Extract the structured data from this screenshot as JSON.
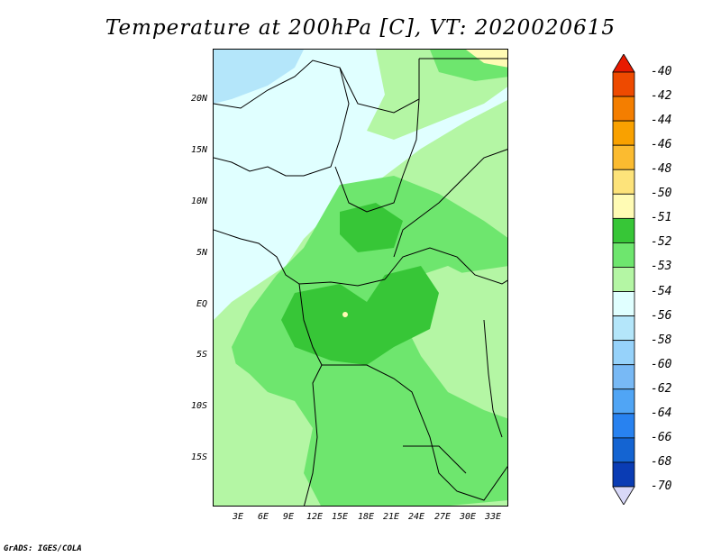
{
  "title": "Temperature at 200hPa [C], VT: 2020020615",
  "credit": "GrADS: IGES/COLA",
  "map": {
    "lat_labels": [
      "20N",
      "15N",
      "10N",
      "5N",
      "EQ",
      "5S",
      "10S",
      "15S"
    ],
    "lon_labels": [
      "3E",
      "6E",
      "9E",
      "12E",
      "15E",
      "18E",
      "21E",
      "24E",
      "27E",
      "30E",
      "33E"
    ]
  },
  "colorbar": {
    "labels": [
      "-40",
      "-42",
      "-44",
      "-46",
      "-48",
      "-50",
      "-51",
      "-52",
      "-53",
      "-54",
      "-56",
      "-58",
      "-60",
      "-62",
      "-64",
      "-66",
      "-68",
      "-70"
    ],
    "colors": [
      "#e81a00",
      "#ee4a00",
      "#f47e00",
      "#f9a100",
      "#fbbb30",
      "#fde37a",
      "#fffbb4",
      "#37c637",
      "#6ee66e",
      "#b4f6a4",
      "#e0ffff",
      "#b4e6fa",
      "#96d2fa",
      "#78b9f5",
      "#50a5f5",
      "#2882f0",
      "#1464d2",
      "#0a3cb4",
      "#000082"
    ]
  },
  "legend_fields": {
    "description": "Color legend: warm at top (-40), cold at bottom (-70)"
  }
}
